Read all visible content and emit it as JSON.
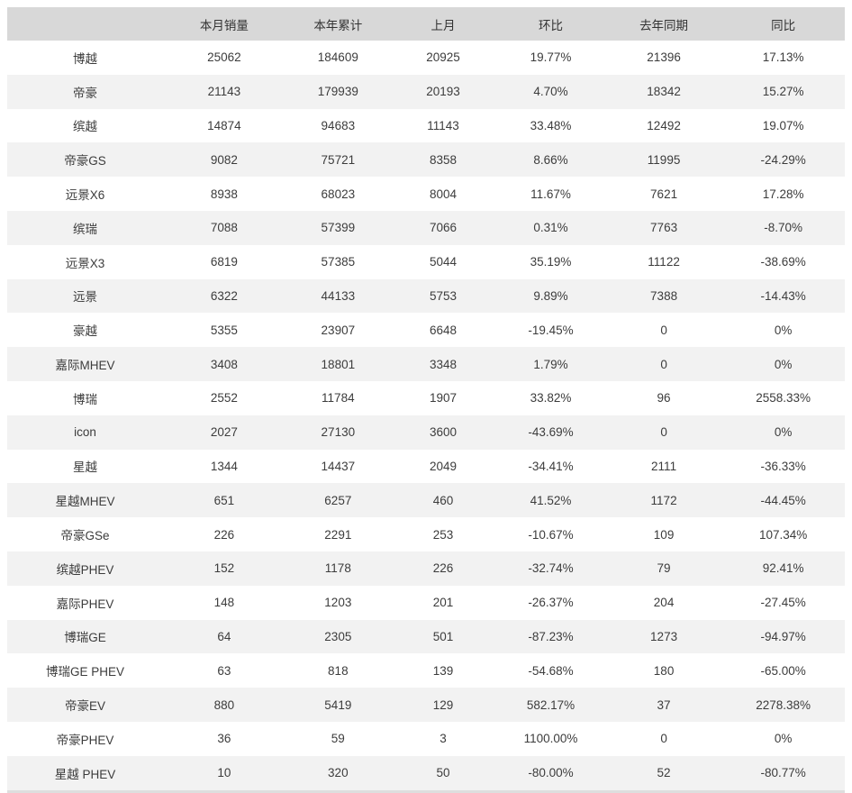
{
  "chart_data": {
    "type": "table",
    "title": "",
    "columns": [
      "",
      "本月销量",
      "本年累计",
      "上月",
      "环比",
      "去年同期",
      "同比"
    ],
    "rows": [
      [
        "博越",
        "25062",
        "184609",
        "20925",
        "19.77%",
        "21396",
        "17.13%"
      ],
      [
        "帝豪",
        "21143",
        "179939",
        "20193",
        "4.70%",
        "18342",
        "15.27%"
      ],
      [
        "缤越",
        "14874",
        "94683",
        "11143",
        "33.48%",
        "12492",
        "19.07%"
      ],
      [
        "帝豪GS",
        "9082",
        "75721",
        "8358",
        "8.66%",
        "11995",
        "-24.29%"
      ],
      [
        "远景X6",
        "8938",
        "68023",
        "8004",
        "11.67%",
        "7621",
        "17.28%"
      ],
      [
        "缤瑞",
        "7088",
        "57399",
        "7066",
        "0.31%",
        "7763",
        "-8.70%"
      ],
      [
        "远景X3",
        "6819",
        "57385",
        "5044",
        "35.19%",
        "11122",
        "-38.69%"
      ],
      [
        "远景",
        "6322",
        "44133",
        "5753",
        "9.89%",
        "7388",
        "-14.43%"
      ],
      [
        "豪越",
        "5355",
        "23907",
        "6648",
        "-19.45%",
        "0",
        "0%"
      ],
      [
        "嘉际MHEV",
        "3408",
        "18801",
        "3348",
        "1.79%",
        "0",
        "0%"
      ],
      [
        "博瑞",
        "2552",
        "11784",
        "1907",
        "33.82%",
        "96",
        "2558.33%"
      ],
      [
        "icon",
        "2027",
        "27130",
        "3600",
        "-43.69%",
        "0",
        "0%"
      ],
      [
        "星越",
        "1344",
        "14437",
        "2049",
        "-34.41%",
        "2111",
        "-36.33%"
      ],
      [
        "星越MHEV",
        "651",
        "6257",
        "460",
        "41.52%",
        "1172",
        "-44.45%"
      ],
      [
        "帝豪GSe",
        "226",
        "2291",
        "253",
        "-10.67%",
        "109",
        "107.34%"
      ],
      [
        "缤越PHEV",
        "152",
        "1178",
        "226",
        "-32.74%",
        "79",
        "92.41%"
      ],
      [
        "嘉际PHEV",
        "148",
        "1203",
        "201",
        "-26.37%",
        "204",
        "-27.45%"
      ],
      [
        "博瑞GE",
        "64",
        "2305",
        "501",
        "-87.23%",
        "1273",
        "-94.97%"
      ],
      [
        "博瑞GE PHEV",
        "63",
        "818",
        "139",
        "-54.68%",
        "180",
        "-65.00%"
      ],
      [
        "帝豪EV",
        "880",
        "5419",
        "129",
        "582.17%",
        "37",
        "2278.38%"
      ],
      [
        "帝豪PHEV",
        "36",
        "59",
        "3",
        "1100.00%",
        "0",
        "0%"
      ],
      [
        "星越 PHEV",
        "10",
        "320",
        "50",
        "-80.00%",
        "52",
        "-80.77%"
      ]
    ],
    "layout": {
      "stripe_style": "alternating rows white / light gray",
      "alignment": "center",
      "grid": "off"
    }
  },
  "colors": {
    "header_bg": "#d8d8d8",
    "stripe_bg": "#f2f2f2",
    "row_bg": "#ffffff",
    "text": "#3c3c3c"
  }
}
